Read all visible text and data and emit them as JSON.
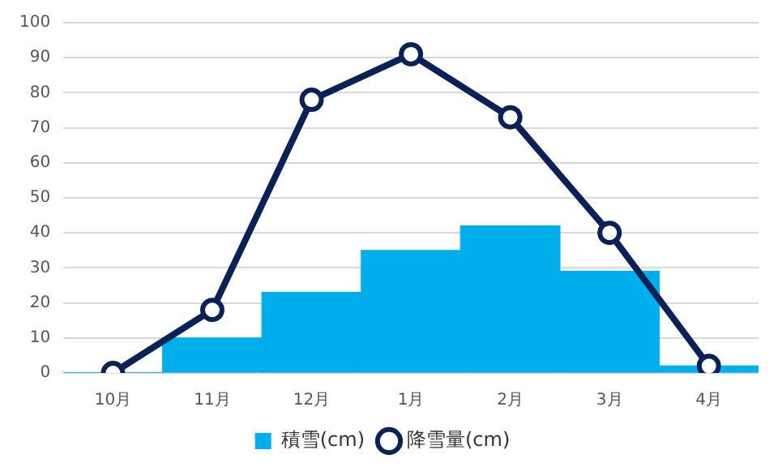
{
  "chart_data": {
    "type": "bar",
    "categories": [
      "10月",
      "11月",
      "12月",
      "1月",
      "2月",
      "3月",
      "4月"
    ],
    "series": [
      {
        "name": "積雪(cm)",
        "color": "#00aeeb",
        "values": [
          0,
          10,
          23,
          35,
          42,
          29,
          2
        ]
      },
      {
        "name": "降雪量(cm)",
        "type": "line",
        "color": "#0a2156",
        "values": [
          0,
          18,
          78,
          91,
          73,
          40,
          2
        ]
      }
    ],
    "ylim": [
      0,
      100
    ],
    "yticks": [
      0,
      10,
      20,
      30,
      40,
      50,
      60,
      70,
      80,
      90,
      100
    ],
    "grid": "y",
    "legend": "bottom",
    "marker": "circle"
  }
}
